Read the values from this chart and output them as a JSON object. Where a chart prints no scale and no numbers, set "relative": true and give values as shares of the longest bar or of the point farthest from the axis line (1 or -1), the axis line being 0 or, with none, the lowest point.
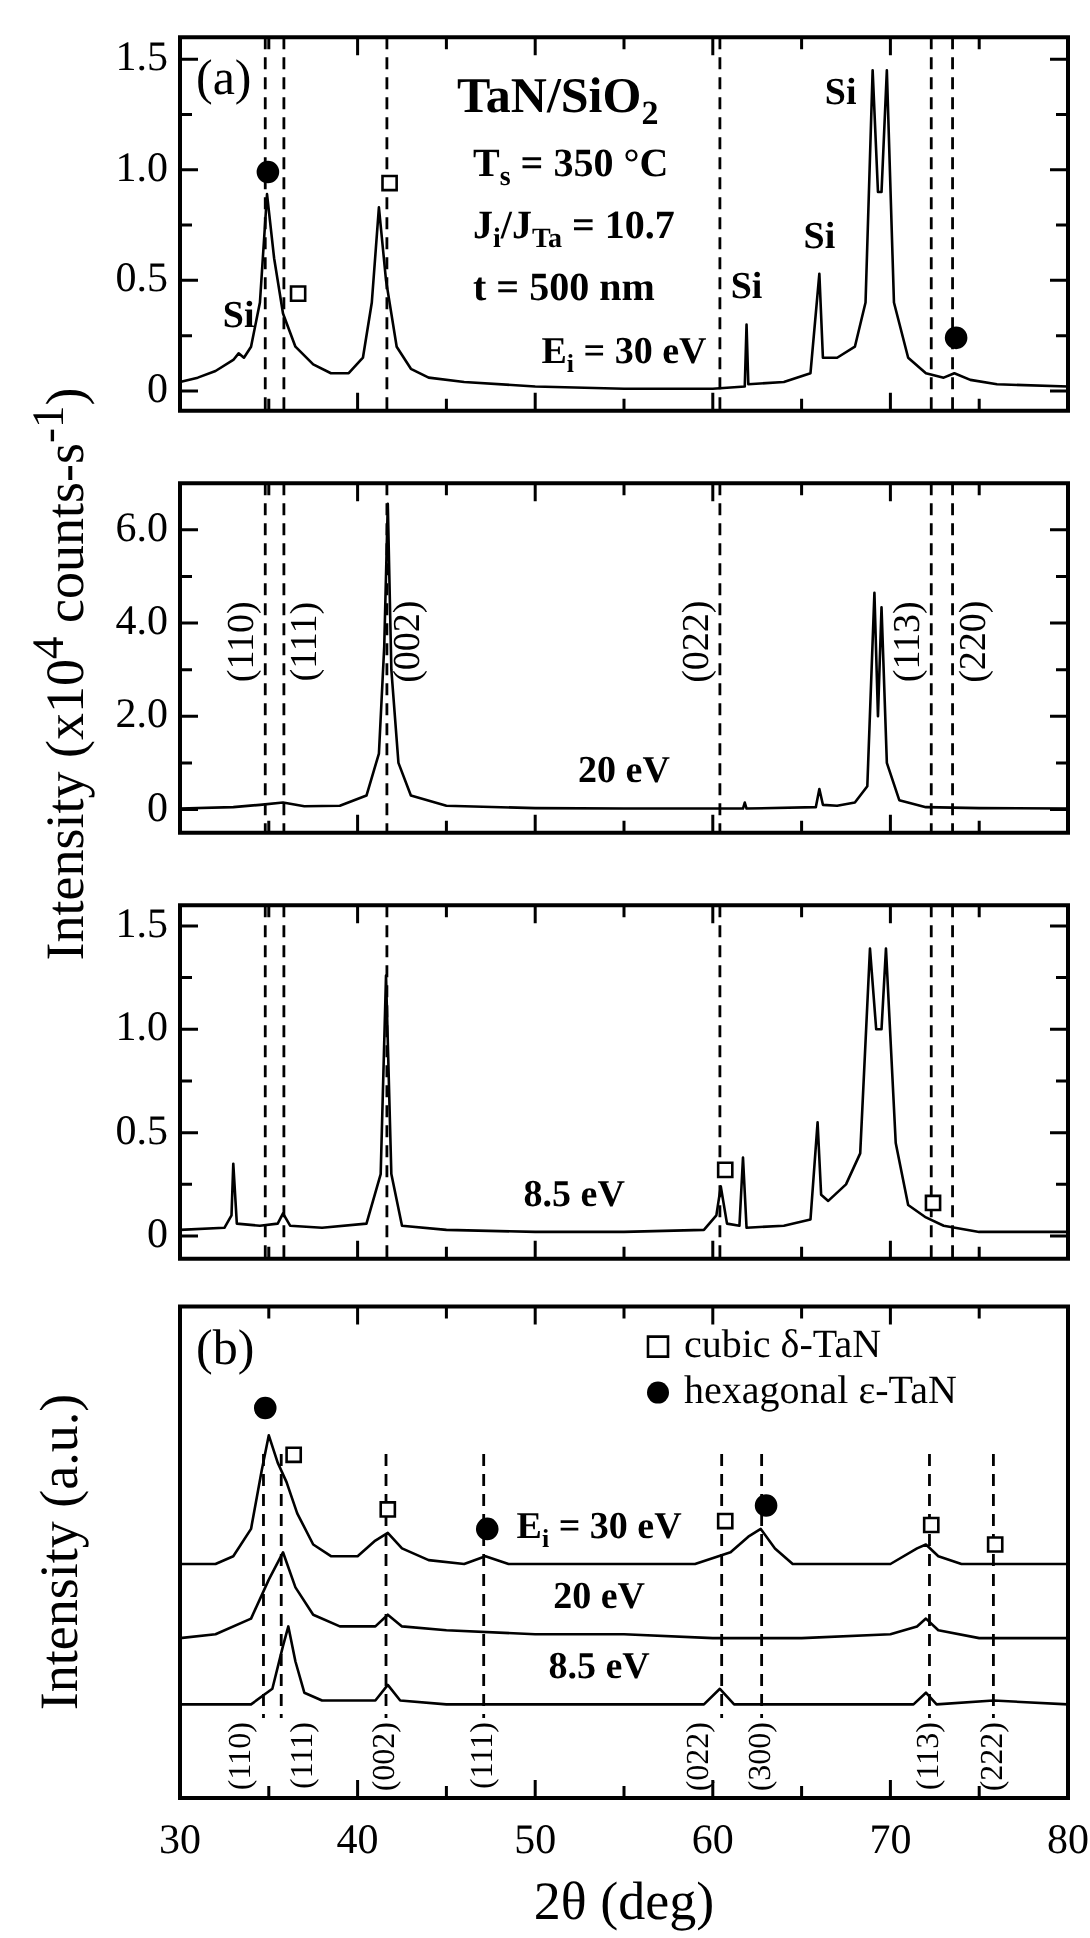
{
  "chart_data": [
    {
      "type": "line",
      "xlim": [
        30,
        80
      ],
      "xticks": [
        30,
        {
          "value": 35,
          "label": null
        },
        40,
        {
          "value": 45,
          "label": null
        },
        50,
        {
          "value": 55,
          "label": null
        },
        60,
        {
          "value": 65,
          "label": null
        },
        70,
        {
          "value": 75,
          "label": null
        },
        80
      ],
      "ylim": [
        -0.09,
        1.6
      ],
      "yticks": [
        0,
        {
          "value": 0.25,
          "label": null
        },
        0.5,
        {
          "value": 0.75,
          "label": null
        },
        {
          "value": 1,
          "label": "1.0"
        },
        {
          "value": 1.25,
          "label": null
        },
        1.5
      ],
      "tick_labels": "y",
      "series": [
        {
          "color": "#000000",
          "x": [
            30,
            31,
            32,
            33,
            33.3,
            33.6,
            34,
            34.5,
            34.9,
            35.3,
            35.8,
            36.5,
            37.5,
            38.5,
            39.5,
            40.3,
            40.8,
            41.2,
            41.6,
            42.2,
            43,
            44,
            46,
            50,
            55,
            60,
            61.8,
            61.9,
            62,
            64,
            65.5,
            66,
            66.2,
            67,
            68,
            68.6,
            69,
            69.3,
            69.5,
            69.8,
            70.2,
            71,
            72,
            73,
            73.6,
            74.5,
            76,
            80
          ],
          "values": [
            0.04,
            0.06,
            0.09,
            0.14,
            0.17,
            0.15,
            0.2,
            0.4,
            0.89,
            0.6,
            0.35,
            0.2,
            0.12,
            0.08,
            0.08,
            0.15,
            0.4,
            0.83,
            0.5,
            0.2,
            0.1,
            0.06,
            0.04,
            0.02,
            0.01,
            0.01,
            0.02,
            0.3,
            0.03,
            0.04,
            0.08,
            0.53,
            0.15,
            0.15,
            0.2,
            0.4,
            1.45,
            0.9,
            0.9,
            1.45,
            0.4,
            0.15,
            0.08,
            0.06,
            0.08,
            0.05,
            0.03,
            0.02
          ]
        },
        {
          "type": "scatter",
          "marker": "circle",
          "color": "#000000",
          "x": [
            34.95,
            73.7
          ],
          "values": [
            0.99,
            0.24
          ]
        },
        {
          "type": "scatter",
          "marker": "square",
          "color": "#000000",
          "x": [
            36.65,
            41.8
          ],
          "values": [
            0.44,
            0.94
          ]
        }
      ],
      "ref_lines": [
        {
          "axis": "x",
          "value": 34.8,
          "line_style": "dashed"
        },
        {
          "axis": "x",
          "value": 35.85,
          "line_style": "dashed"
        },
        {
          "axis": "x",
          "value": 41.65,
          "line_style": "dashed"
        },
        {
          "axis": "x",
          "value": 60.4,
          "line_style": "dashed"
        },
        {
          "axis": "x",
          "value": 72.3,
          "line_style": "dashed"
        },
        {
          "axis": "x",
          "value": 73.5,
          "line_style": "dashed"
        }
      ],
      "annotations": [
        "(a)",
        "TaN/SiO$_{2}$",
        "T$_{s}$ = 350 °C",
        "J$_{i}$/J$_{Ta}$ = 10.7",
        "t = 500 nm",
        {
          "text": "E$_{i}$ = 30 eV",
          "x": 55,
          "y": 0.01
        },
        {
          "text": "Si",
          "x": 33.3,
          "y": 0.17
        },
        {
          "text": "Si",
          "x": 61.9,
          "y": 0.3
        },
        {
          "text": "Si",
          "x": 66,
          "y": 0.53
        },
        {
          "text": "Si",
          "x": 69,
          "y": 1.45
        }
      ]
    },
    {
      "type": "line",
      "xlim": [
        30,
        80
      ],
      "xticks": [
        30,
        {
          "value": 35,
          "label": null
        },
        40,
        {
          "value": 45,
          "label": null
        },
        50,
        {
          "value": 55,
          "label": null
        },
        60,
        {
          "value": 65,
          "label": null
        },
        70,
        {
          "value": 75,
          "label": null
        },
        80
      ],
      "ylim": [
        -0.5,
        7
      ],
      "yticks": [
        0,
        {
          "value": 1,
          "label": null
        },
        {
          "value": 2,
          "label": "2.0"
        },
        {
          "value": 3,
          "label": null
        },
        {
          "value": 4,
          "label": "4.0"
        },
        {
          "value": 5,
          "label": null
        },
        {
          "value": 6,
          "label": "6.0"
        }
      ],
      "tick_labels": "y",
      "ylabel": "Intensity (x10$^{4}$ counts-s$^{-1}$)",
      "series": [
        {
          "color": "#000000",
          "x": [
            30,
            33,
            34.5,
            35.8,
            37,
            39,
            40.5,
            41.2,
            41.5,
            41.7,
            41.9,
            42.3,
            43,
            45,
            50,
            55,
            60,
            61.7,
            61.8,
            61.9,
            65.8,
            66,
            66.2,
            67,
            68,
            68.7,
            69.1,
            69.3,
            69.5,
            69.8,
            70.5,
            72,
            75,
            80
          ],
          "values": [
            0.02,
            0.05,
            0.1,
            0.15,
            0.07,
            0.08,
            0.3,
            1.2,
            3.5,
            6.56,
            3.0,
            1.0,
            0.3,
            0.08,
            0.03,
            0.02,
            0.02,
            0.02,
            0.15,
            0.02,
            0.05,
            0.44,
            0.1,
            0.08,
            0.15,
            0.5,
            4.65,
            2.0,
            4.34,
            1.0,
            0.2,
            0.05,
            0.03,
            0.02
          ]
        }
      ],
      "ref_lines": [
        {
          "axis": "x",
          "value": 34.8,
          "line_style": "dashed"
        },
        {
          "axis": "x",
          "value": 35.85,
          "line_style": "dashed"
        },
        {
          "axis": "x",
          "value": 41.65,
          "line_style": "dashed"
        },
        {
          "axis": "x",
          "value": 60.4,
          "line_style": "dashed"
        },
        {
          "axis": "x",
          "value": 72.3,
          "line_style": "dashed"
        },
        {
          "axis": "x",
          "value": 73.5,
          "line_style": "dashed"
        }
      ],
      "annotations": [
        {
          "text": "20 eV",
          "x": 55,
          "y": 0.02
        },
        {
          "text": "(110)",
          "x": 34.8,
          "y": 3.6
        },
        {
          "text": "(111)",
          "x": 35.85,
          "y": 3.6
        },
        {
          "text": "(002)",
          "x": 41.65,
          "y": 3.6
        },
        {
          "text": "(022)",
          "x": 60.4,
          "y": 3.6
        },
        {
          "text": "(113)",
          "x": 72.3,
          "y": 3.6
        },
        {
          "text": "(220)",
          "x": 73.5,
          "y": 3.6
        }
      ]
    },
    {
      "type": "line",
      "xlim": [
        30,
        80
      ],
      "xticks": [
        30,
        {
          "value": 35,
          "label": null
        },
        40,
        {
          "value": 45,
          "label": null
        },
        50,
        {
          "value": 55,
          "label": null
        },
        60,
        {
          "value": 65,
          "label": null
        },
        70,
        {
          "value": 75,
          "label": null
        },
        80
      ],
      "ylim": [
        -0.11,
        1.6
      ],
      "yticks": [
        0,
        {
          "value": 0.25,
          "label": null
        },
        0.5,
        {
          "value": 0.75,
          "label": null
        },
        {
          "value": 1,
          "label": "1.0"
        },
        {
          "value": 1.25,
          "label": null
        },
        1.5
      ],
      "tick_labels": "y",
      "series": [
        {
          "color": "#000000",
          "x": [
            30,
            32.5,
            32.9,
            33,
            33.2,
            34.5,
            35.5,
            35.8,
            36.2,
            38,
            40.5,
            41.3,
            41.6,
            41.9,
            42.5,
            45,
            50,
            55,
            59.5,
            60.2,
            60.45,
            60.8,
            61.5,
            61.7,
            61.9,
            64,
            65.5,
            65.9,
            66.1,
            66.5,
            67.5,
            68.3,
            68.85,
            69.2,
            69.5,
            69.75,
            70.3,
            71,
            72,
            73,
            75,
            80
          ],
          "values": [
            0.03,
            0.04,
            0.1,
            0.35,
            0.06,
            0.05,
            0.06,
            0.11,
            0.05,
            0.04,
            0.06,
            0.3,
            1.26,
            0.3,
            0.05,
            0.03,
            0.02,
            0.02,
            0.03,
            0.1,
            0.24,
            0.06,
            0.05,
            0.38,
            0.04,
            0.05,
            0.08,
            0.55,
            0.2,
            0.17,
            0.25,
            0.4,
            1.39,
            1.0,
            1.0,
            1.39,
            0.45,
            0.15,
            0.09,
            0.05,
            0.02,
            0.02
          ]
        },
        {
          "type": "scatter",
          "marker": "square",
          "color": "#000000",
          "x": [
            60.7,
            72.4
          ],
          "values": [
            0.32,
            0.16
          ]
        }
      ],
      "ref_lines": [
        {
          "axis": "x",
          "value": 34.8,
          "line_style": "dashed"
        },
        {
          "axis": "x",
          "value": 35.85,
          "line_style": "dashed"
        },
        {
          "axis": "x",
          "value": 41.65,
          "line_style": "dashed"
        },
        {
          "axis": "x",
          "value": 60.4,
          "line_style": "dashed"
        },
        {
          "axis": "x",
          "value": 72.3,
          "line_style": "dashed"
        },
        {
          "axis": "x",
          "value": 73.5,
          "line_style": "dashed"
        }
      ],
      "annotations": [
        {
          "text": "8.5 eV",
          "x": 52.2,
          "y": 0.02
        }
      ]
    },
    {
      "type": "line",
      "relative": true,
      "xlim": [
        30,
        80
      ],
      "xticks": [
        30,
        {
          "value": 35,
          "label": null
        },
        40,
        {
          "value": 45,
          "label": null
        },
        50,
        {
          "value": 55,
          "label": null
        },
        60,
        {
          "value": 65,
          "label": null
        },
        70,
        {
          "value": 75,
          "label": null
        },
        80
      ],
      "tick_labels": "x",
      "xlabel": "2θ (deg)",
      "ylabel": "Intensity (a.u.)",
      "legend": "top right",
      "series": [
        {
          "color": "#000000",
          "x": [
            30,
            31,
            32,
            33,
            34,
            34.6,
            35,
            35.5,
            36,
            36.6,
            37.5,
            38.5,
            40,
            41,
            41.7,
            42.5,
            44,
            46,
            47.2,
            48.5,
            52,
            56,
            59,
            61,
            62,
            62.7,
            63.5,
            64.5,
            67,
            70,
            71.5,
            72,
            72.7,
            74,
            77,
            80
          ],
          "values": [
            0.6,
            0.6,
            0.6,
            0.62,
            0.69,
            0.84,
            0.93,
            0.86,
            0.81,
            0.73,
            0.65,
            0.62,
            0.62,
            0.66,
            0.68,
            0.64,
            0.61,
            0.6,
            0.62,
            0.6,
            0.6,
            0.6,
            0.6,
            0.63,
            0.67,
            0.69,
            0.64,
            0.6,
            0.6,
            0.6,
            0.64,
            0.65,
            0.62,
            0.6,
            0.6,
            0.6
          ]
        },
        {
          "color": "#000000",
          "x": [
            30,
            32,
            34,
            35,
            35.8,
            36.5,
            37.5,
            39,
            41,
            41.7,
            42.5,
            45,
            50,
            55,
            60,
            65,
            70,
            71.5,
            72,
            72.7,
            75,
            80
          ],
          "values": [
            0.41,
            0.42,
            0.46,
            0.56,
            0.63,
            0.54,
            0.47,
            0.44,
            0.44,
            0.47,
            0.44,
            0.43,
            0.42,
            0.42,
            0.41,
            0.41,
            0.42,
            0.44,
            0.46,
            0.43,
            0.41,
            0.41
          ]
        },
        {
          "color": "#000000",
          "x": [
            30,
            34,
            35.2,
            35.8,
            36.1,
            36.5,
            37,
            38,
            41,
            41.7,
            42.4,
            45,
            59.5,
            60.4,
            61.2,
            65,
            71.3,
            72,
            72.6,
            75.8,
            80
          ],
          "values": [
            0.24,
            0.24,
            0.28,
            0.39,
            0.44,
            0.35,
            0.27,
            0.25,
            0.25,
            0.29,
            0.25,
            0.24,
            0.24,
            0.28,
            0.24,
            0.24,
            0.24,
            0.27,
            0.24,
            0.25,
            0.24
          ]
        },
        {
          "type": "scatter",
          "marker": "square",
          "name": "cubic δ-TaN",
          "color": "#000000",
          "x": [
            36.4,
            41.7,
            60.7,
            72.3,
            75.9
          ],
          "values": [
            0.88,
            0.74,
            0.71,
            0.7,
            0.65
          ]
        },
        {
          "type": "scatter",
          "marker": "circle",
          "name": "hexagonal ε-TaN",
          "color": "#000000",
          "x": [
            34.8,
            47.3,
            63
          ],
          "values": [
            1,
            0.69,
            0.75
          ]
        }
      ],
      "ref_lines": [
        {
          "axis": "x",
          "value": 34.7,
          "line_style": "dashed"
        },
        {
          "axis": "x",
          "value": 35.7,
          "line_style": "dashed"
        },
        {
          "axis": "x",
          "value": 41.6,
          "line_style": "dashed"
        },
        {
          "axis": "x",
          "value": 47.1,
          "line_style": "dashed"
        },
        {
          "axis": "x",
          "value": 60.5,
          "line_style": "dashed"
        },
        {
          "axis": "x",
          "value": 62.75,
          "line_style": "dashed"
        },
        {
          "axis": "x",
          "value": 72.2,
          "line_style": "dashed"
        },
        {
          "axis": "x",
          "value": 75.8,
          "line_style": "dashed"
        }
      ],
      "annotations": [
        "(b)",
        {
          "text": "E$_{i}$ = 30 eV",
          "x": 53.6,
          "y": 0.6
        },
        {
          "text": "20 eV",
          "x": 53.6,
          "y": 0.42
        },
        {
          "text": "8.5 eV",
          "x": 53.6,
          "y": 0.24
        },
        {
          "text": "(110)",
          "x": 34.7,
          "y": 0.2
        },
        {
          "text": "(111)",
          "x": 35.7,
          "y": 0.2
        },
        {
          "text": "(002)",
          "x": 41.6,
          "y": 0.2
        },
        {
          "text": "(111)",
          "x": 47.1,
          "y": 0.2
        },
        {
          "text": "(022)",
          "x": 60.5,
          "y": 0.2
        },
        {
          "text": "(300)",
          "x": 62.75,
          "y": 0.2
        },
        {
          "text": "(113)",
          "x": 72.2,
          "y": 0.2
        },
        {
          "text": "(222)",
          "x": 75.8,
          "y": 0.2
        }
      ]
    }
  ]
}
